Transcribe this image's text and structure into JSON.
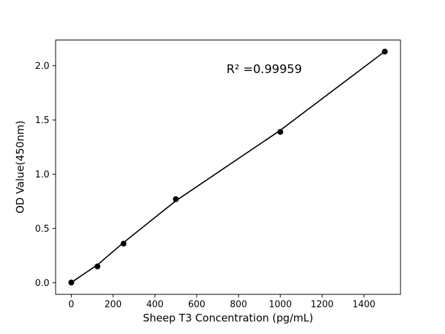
{
  "figure": {
    "background": "#ffffff"
  },
  "chart_data": {
    "type": "scatter",
    "title": "",
    "xlabel": "Sheep T3 Concentration (pg/mL)",
    "ylabel": "OD Value(450nm)",
    "annotation": "R² =0.99959",
    "x_tick_labels": [
      "0",
      "200",
      "400",
      "600",
      "800",
      "1000",
      "1200",
      "1400"
    ],
    "x_tick_values": [
      0,
      200,
      400,
      600,
      800,
      1000,
      1200,
      1400
    ],
    "y_tick_labels": [
      "0.0",
      "0.5",
      "1.0",
      "1.5",
      "2.0"
    ],
    "y_tick_values": [
      0,
      0.5,
      1.0,
      1.5,
      2.0
    ],
    "xlim": [
      -75,
      1575
    ],
    "ylim": [
      -0.107,
      2.237
    ],
    "grid": false,
    "legend": null,
    "points": [
      [
        0,
        0.002
      ],
      [
        125,
        0.15
      ],
      [
        250,
        0.36
      ],
      [
        500,
        0.77
      ],
      [
        1000,
        1.39
      ],
      [
        1500,
        2.13
      ]
    ],
    "fit_line": [
      [
        0,
        0.002
      ],
      [
        125,
        0.165
      ],
      [
        250,
        0.37
      ],
      [
        500,
        0.755
      ],
      [
        1000,
        1.405
      ],
      [
        1500,
        2.132
      ]
    ],
    "colors": {
      "marker": "#000000",
      "line": "#000000",
      "spine": "#000000",
      "text": "#000000",
      "background": "#ffffff"
    }
  }
}
